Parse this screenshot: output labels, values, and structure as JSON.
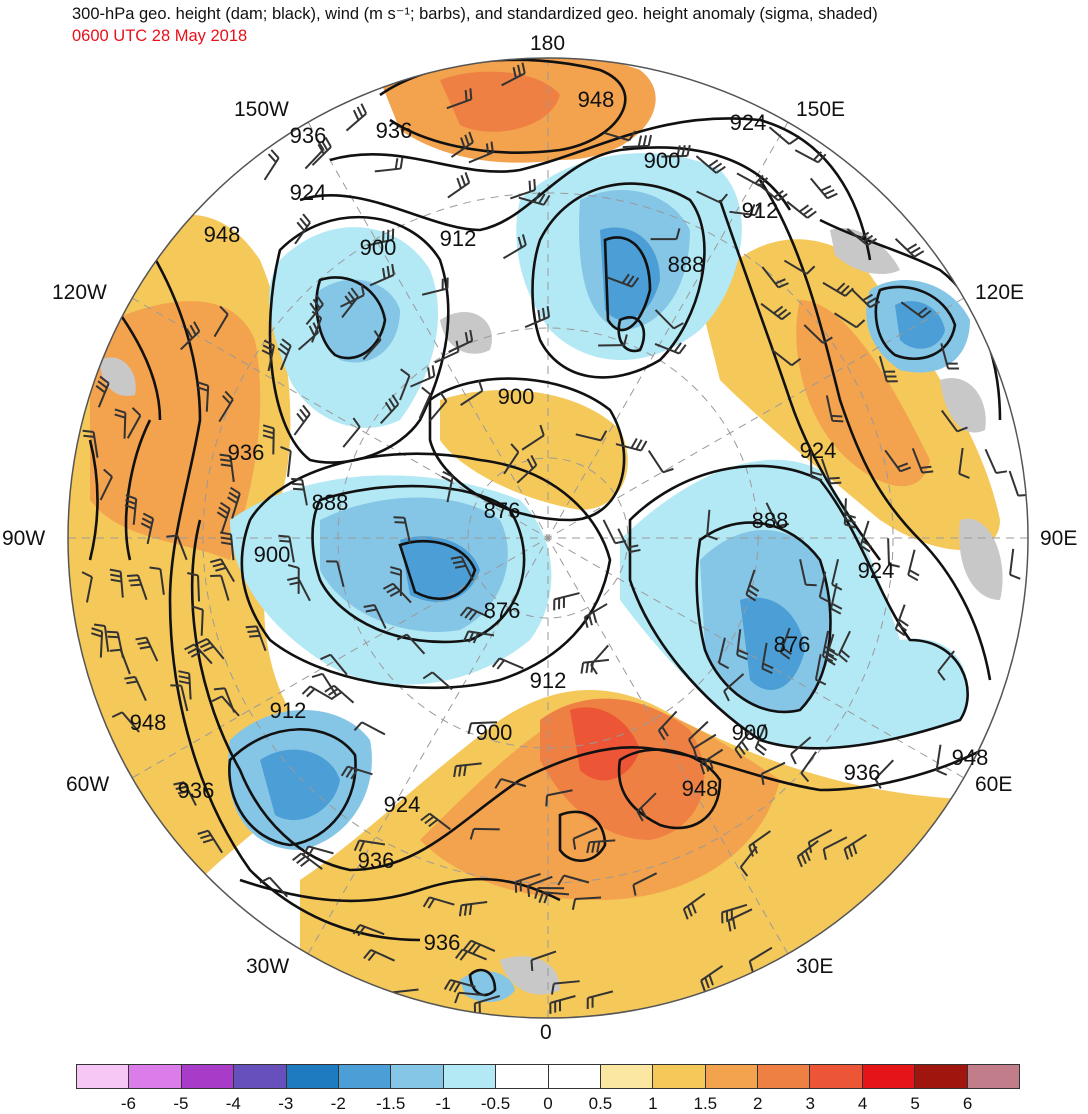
{
  "header": {
    "title": "300-hPa geo. height (dam; black), wind (m s⁻¹; barbs), and standardized geo. height anomaly (sigma, shaded)",
    "datetime": "0600 UTC 28 May 2018"
  },
  "longitude_labels": {
    "lon_180": "180",
    "lon_150w": "150W",
    "lon_150e": "150E",
    "lon_120w": "120W",
    "lon_120e": "120E",
    "lon_90w": "90W",
    "lon_90e": "90E",
    "lon_60w": "60W",
    "lon_60e": "60E",
    "lon_30w": "30W",
    "lon_30e": "30E",
    "lon_0": "0"
  },
  "contour_labels": {
    "c1": "948",
    "c2": "924",
    "c3": "936",
    "c4": "936",
    "c5": "900",
    "c6": "912",
    "c7": "924",
    "c8": "948",
    "c9": "912",
    "c10": "888",
    "c11": "900",
    "c12": "924",
    "c13": "936",
    "c14": "888",
    "c15": "876",
    "c16": "888",
    "c17": "900",
    "c18": "876",
    "c19": "924",
    "c20": "876",
    "c21": "912",
    "c22": "948",
    "c23": "912",
    "c24": "900",
    "c25": "900",
    "c26": "948",
    "c27": "936",
    "c28": "948",
    "c29": "924",
    "c30": "936",
    "c31": "936"
  },
  "colorbar": {
    "colors": [
      "#f6c6f5",
      "#dc7ceb",
      "#a83cc8",
      "#6750bc",
      "#1f7bc0",
      "#4b9fd6",
      "#85c5e6",
      "#b3e9f5",
      "#ffffff",
      "#ffffff",
      "#fbe7a1",
      "#f5c85a",
      "#f3a24d",
      "#ef8043",
      "#ec5535",
      "#e41418",
      "#a0150e",
      "#c17d8a"
    ],
    "ticks": [
      "-6",
      "-5",
      "-4",
      "-3",
      "-2",
      "-1.5",
      "-1",
      "-0.5",
      "0",
      "0.5",
      "1",
      "1.5",
      "2",
      "3",
      "4",
      "5",
      "6"
    ]
  }
}
